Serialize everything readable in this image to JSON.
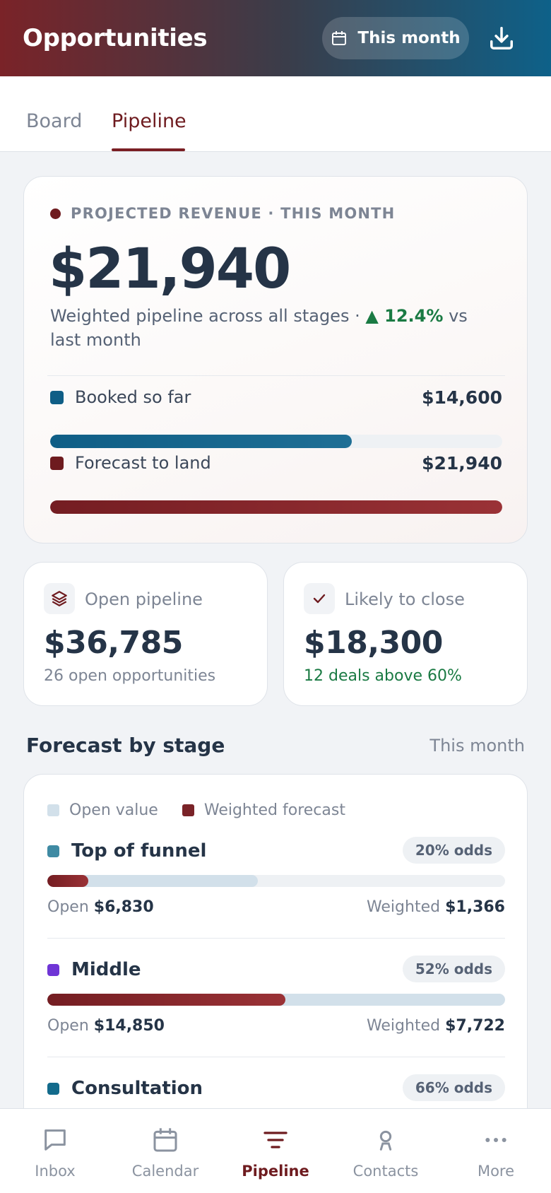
{
  "header": {
    "title": "Opportunities",
    "range_label": "This month",
    "calendar_icon": "calendar-icon",
    "download_icon": "download-icon"
  },
  "tabs": [
    {
      "label": "Board",
      "active": false
    },
    {
      "label": "Pipeline",
      "active": true
    }
  ],
  "hero": {
    "eyebrow": "PROJECTED REVENUE · THIS MONTH",
    "amount": "$21,940",
    "subtitle_prefix": "Weighted pipeline across all stages ·",
    "change": "▲ 12.4%",
    "subtitle_suffix": "vs last month",
    "booked": {
      "label": "Booked so far",
      "value": "$14,600",
      "fraction": 0.667,
      "color": "#0f5e86"
    },
    "forecast": {
      "label": "Forecast to land",
      "value": "$21,940",
      "fraction": 1.0,
      "color": "#6e1b1f"
    }
  },
  "kpis": {
    "open": {
      "label": "Open pipeline",
      "amount": "$36,785",
      "note": "26 open opportunities",
      "icon": "layers-icon"
    },
    "likely": {
      "label": "Likely to close",
      "amount": "$18,300",
      "note": "12 deals above 60%",
      "icon": "check-icon"
    }
  },
  "stages_section": {
    "title": "Forecast by stage",
    "range": "This month",
    "legend_open": "Open value",
    "legend_weighted": "Weighted forecast",
    "open_label": "Open",
    "weighted_label": "Weighted",
    "items": [
      {
        "name": "Top of funnel",
        "odds": "20% odds",
        "open": "$6,830",
        "weighted": "$1,366",
        "color": "#3f8aa3",
        "open_fraction": 0.46,
        "weighted_fraction": 0.09
      },
      {
        "name": "Middle",
        "odds": "52% odds",
        "open": "$14,850",
        "weighted": "$7,722",
        "color": "#6f35d6",
        "open_fraction": 1.0,
        "weighted_fraction": 0.52
      },
      {
        "name": "Consultation",
        "odds": "66% odds",
        "open": "",
        "weighted": "",
        "color": "#136b8c",
        "open_fraction": 0,
        "weighted_fraction": 0
      }
    ]
  },
  "nav": [
    {
      "label": "Inbox",
      "icon": "inbox-icon",
      "active": false
    },
    {
      "label": "Calendar",
      "icon": "calendar-icon",
      "active": false
    },
    {
      "label": "Pipeline",
      "icon": "filter-icon",
      "active": true
    },
    {
      "label": "Contacts",
      "icon": "person-icon",
      "active": false
    },
    {
      "label": "More",
      "icon": "more-icon",
      "active": false
    }
  ]
}
